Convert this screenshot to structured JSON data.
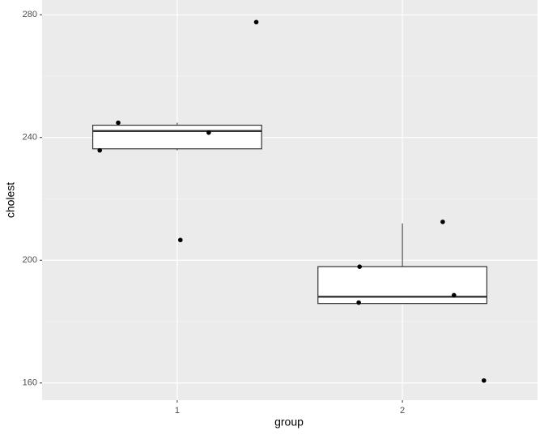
{
  "chart_data": {
    "type": "box",
    "x_label": "group",
    "y_label": "cholest",
    "categories": [
      "1",
      "2"
    ],
    "boxes": [
      {
        "whisker_low": 235.8,
        "q1": 236.3,
        "median": 242.1,
        "q3": 244.0,
        "whisker_high": 244.8
      },
      {
        "whisker_low": 185.9,
        "q1": 185.9,
        "median": 188.1,
        "q3": 197.9,
        "whisker_high": 212.0
      }
    ],
    "points": {
      "x": [
        0.656,
        0.738,
        1.14,
        1.014,
        1.351,
        1.81,
        1.806,
        2.179,
        2.229,
        2.362
      ],
      "y": [
        235.8,
        244.8,
        241.6,
        206.6,
        277.6,
        197.9,
        186.2,
        212.5,
        188.6,
        160.8
      ],
      "color": "#000000"
    },
    "box_width": 0.75,
    "xlim": [
      0.4,
      2.6
    ],
    "ylim": [
      154.4,
      284.8
    ],
    "yticks": [
      160,
      200,
      240,
      280
    ],
    "yminor": [
      180,
      220,
      260
    ],
    "grid": true
  }
}
